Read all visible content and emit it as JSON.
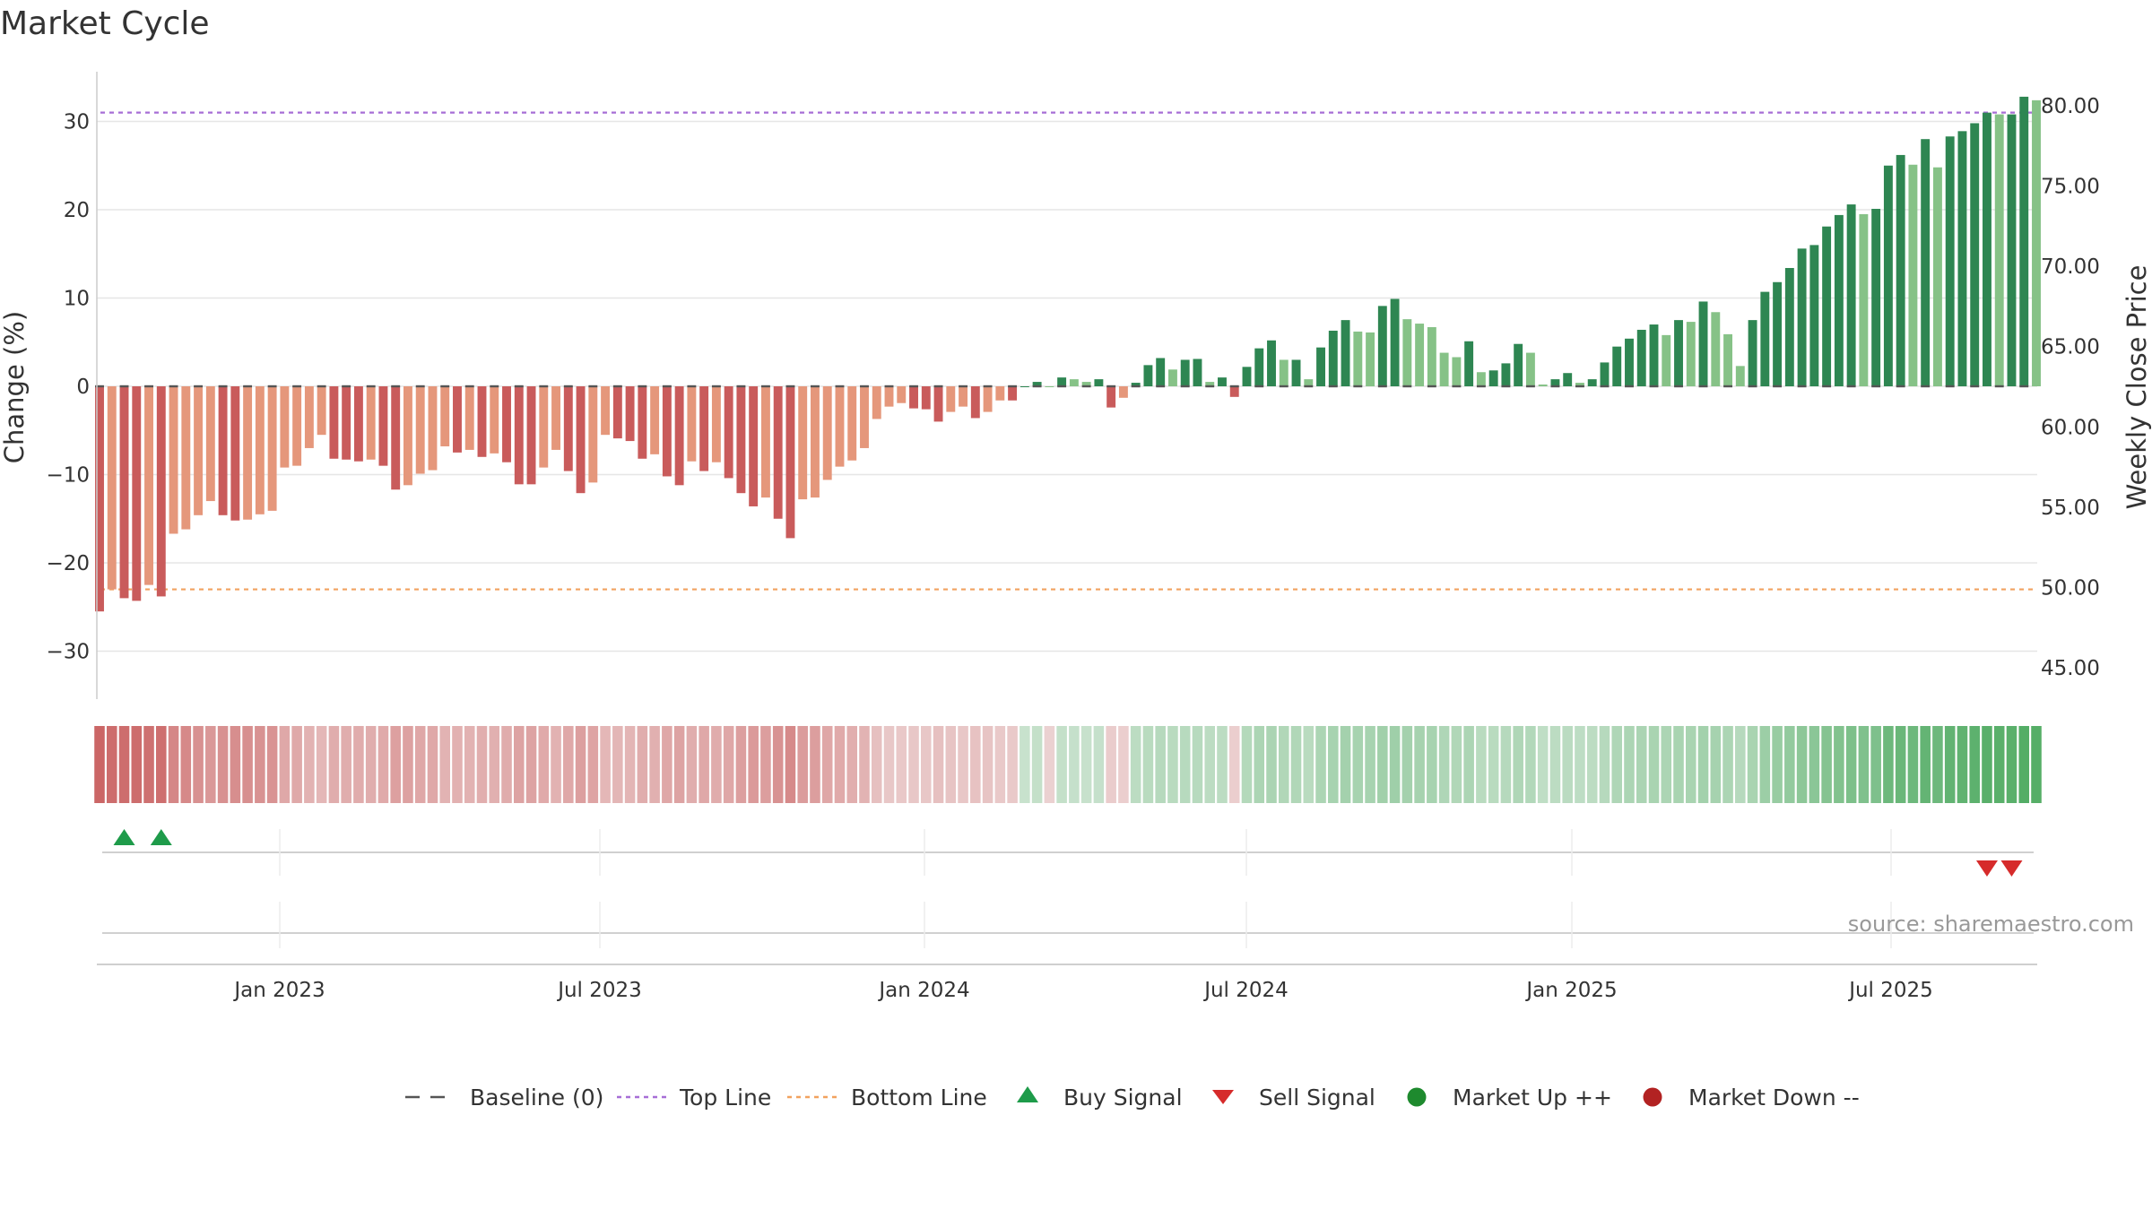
{
  "chart_data": {
    "type": "bar",
    "title": "Market Cycle",
    "y_left_label": "Change (%)",
    "y_right_label": "Weekly Close Price",
    "y_left_ticks": [
      "30",
      "20",
      "10",
      "0",
      "−10",
      "−20",
      "−30"
    ],
    "y_left_tick_values": [
      30,
      20,
      10,
      0,
      -10,
      -20,
      -30
    ],
    "y_left_range": [
      -35.5,
      35.5
    ],
    "y_right_ticks": [
      "80.00",
      "75.00",
      "70.00",
      "65.00",
      "60.00",
      "55.00",
      "50.00",
      "45.00"
    ],
    "y_right_tick_values": [
      80,
      75,
      70,
      65,
      60,
      55,
      50,
      45
    ],
    "x_tick_labels": [
      "Jan 2023",
      "Jul 2023",
      "Jan 2024",
      "Jul 2024",
      "Jan 2025",
      "Jul 2025"
    ],
    "x_tick_week_index": [
      17,
      43,
      69,
      95,
      121,
      147
    ],
    "top_line": 31,
    "bottom_line": -23,
    "colors": {
      "dark_red": "#c95b5b",
      "light_red": "#e5977b",
      "dark_green": "#2e8652",
      "light_green": "#86c287",
      "top_line": "#a76ed6",
      "bottom_line": "#f2a25f",
      "baseline": "#555555",
      "buy": "#1e9b4a",
      "sell": "#d62b2b",
      "market_up": "#1e8a2e",
      "market_down": "#b22222",
      "heat_neg": "#c96060",
      "heat_pos": "#3ea352"
    },
    "series": [
      {
        "name": "Change (%)",
        "values": [
          -25.5,
          -23,
          -24,
          -24.3,
          -22.5,
          -23.8,
          -16.7,
          -16.2,
          -14.6,
          -13,
          -14.6,
          -15.2,
          -15.1,
          -14.5,
          -14.1,
          -9.2,
          -9,
          -7,
          -5.5,
          -8.2,
          -8.3,
          -8.5,
          -8.3,
          -9,
          -11.7,
          -11.2,
          -9.9,
          -9.5,
          -6.8,
          -7.5,
          -7.2,
          -8,
          -7.6,
          -8.6,
          -11.1,
          -11.1,
          -9.2,
          -7.2,
          -9.6,
          -12.1,
          -10.9,
          -5.5,
          -5.9,
          -6.2,
          -8.2,
          -7.7,
          -10.2,
          -11.2,
          -8.5,
          -9.6,
          -8.6,
          -10.4,
          -12.1,
          -13.6,
          -12.6,
          -15,
          -17.2,
          -12.8,
          -12.6,
          -10.6,
          -9.1,
          -8.4,
          -7,
          -3.7,
          -2.3,
          -1.9,
          -2.5,
          -2.6,
          -4,
          -2.9,
          -2.3,
          -3.6,
          -2.9,
          -1.6,
          -1.6,
          0,
          0.5,
          0,
          1,
          0.8,
          0.5,
          0.8,
          -2.4,
          -1.3,
          0.4,
          2.4,
          3.2,
          1.9,
          3,
          3.1,
          0.5,
          1,
          -1.2,
          2.2,
          4.3,
          5.2,
          3,
          3,
          0.8,
          4.4,
          6.3,
          7.5,
          6.2,
          6.1,
          9.1,
          9.9,
          7.6,
          7.1,
          6.7,
          3.8,
          3.3,
          5.1,
          1.6,
          1.8,
          2.6,
          4.8,
          3.8,
          0.2,
          0.8,
          1.5,
          0.4,
          0.8,
          2.7,
          4.5,
          5.4,
          6.4,
          7,
          5.8,
          7.5,
          7.3,
          9.6,
          8.4,
          5.9,
          2.3,
          7.5,
          10.7,
          11.8,
          13.4,
          15.6,
          16,
          18.1,
          19.4,
          20.6,
          19.5,
          20.1,
          25,
          26.2,
          25.1,
          28,
          24.8,
          28.3,
          28.9,
          29.8,
          31,
          30.8,
          30.8,
          32.8,
          32.4
        ]
      }
    ],
    "heat_values": [
      -0.95,
      -0.9,
      -0.9,
      -0.9,
      -0.87,
      -0.88,
      -0.7,
      -0.68,
      -0.62,
      -0.56,
      -0.62,
      -0.64,
      -0.63,
      -0.61,
      -0.6,
      -0.44,
      -0.43,
      -0.36,
      -0.32,
      -0.4,
      -0.4,
      -0.41,
      -0.4,
      -0.42,
      -0.5,
      -0.49,
      -0.45,
      -0.44,
      -0.35,
      -0.37,
      -0.36,
      -0.39,
      -0.38,
      -0.41,
      -0.48,
      -0.48,
      -0.42,
      -0.36,
      -0.44,
      -0.51,
      -0.47,
      -0.32,
      -0.33,
      -0.34,
      -0.4,
      -0.38,
      -0.45,
      -0.48,
      -0.4,
      -0.44,
      -0.41,
      -0.45,
      -0.51,
      -0.55,
      -0.52,
      -0.61,
      -0.67,
      -0.53,
      -0.52,
      -0.45,
      -0.42,
      -0.39,
      -0.35,
      -0.25,
      -0.2,
      -0.19,
      -0.2,
      -0.2,
      -0.25,
      -0.22,
      -0.2,
      -0.24,
      -0.22,
      -0.18,
      -0.18,
      0.12,
      0.15,
      -0.12,
      0.15,
      0.14,
      0.13,
      0.14,
      -0.16,
      -0.14,
      0.2,
      0.22,
      0.24,
      0.22,
      0.23,
      0.23,
      0.2,
      0.2,
      -0.14,
      0.25,
      0.3,
      0.31,
      0.27,
      0.27,
      0.22,
      0.3,
      0.33,
      0.35,
      0.33,
      0.33,
      0.37,
      0.38,
      0.35,
      0.34,
      0.33,
      0.28,
      0.27,
      0.3,
      0.22,
      0.22,
      0.24,
      0.28,
      0.26,
      0.18,
      0.2,
      0.21,
      0.19,
      0.2,
      0.24,
      0.28,
      0.3,
      0.31,
      0.32,
      0.3,
      0.32,
      0.32,
      0.36,
      0.34,
      0.3,
      0.24,
      0.32,
      0.4,
      0.43,
      0.46,
      0.5,
      0.51,
      0.55,
      0.57,
      0.6,
      0.58,
      0.59,
      0.7,
      0.72,
      0.7,
      0.76,
      0.7,
      0.77,
      0.78,
      0.8,
      0.83,
      0.82,
      0.82,
      0.86,
      0.85
    ],
    "buy_signals": [
      2,
      5
    ],
    "sell_signals": [
      153,
      155
    ],
    "source": "source: sharemaestro.com",
    "legend": [
      {
        "label": "Baseline (0)",
        "symbol": "baseline"
      },
      {
        "label": "Top Line",
        "symbol": "top"
      },
      {
        "label": "Bottom Line",
        "symbol": "bottom"
      },
      {
        "label": "Buy Signal",
        "symbol": "buy"
      },
      {
        "label": "Sell Signal",
        "symbol": "sell"
      },
      {
        "label": "Market Up ++",
        "symbol": "up"
      },
      {
        "label": "Market Down --",
        "symbol": "down"
      }
    ]
  }
}
